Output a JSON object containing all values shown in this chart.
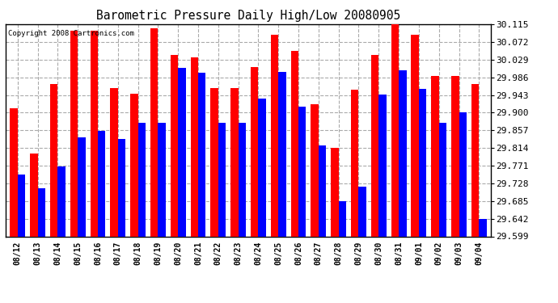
{
  "title": "Barometric Pressure Daily High/Low 20080905",
  "copyright": "Copyright 2008 Cartronics.com",
  "yticks": [
    29.599,
    29.642,
    29.685,
    29.728,
    29.771,
    29.814,
    29.857,
    29.9,
    29.943,
    29.986,
    30.029,
    30.072,
    30.115
  ],
  "ymin": 29.599,
  "ymax": 30.115,
  "background_color": "#ffffff",
  "plot_bg_color": "#ffffff",
  "grid_color": "#aaaaaa",
  "bar_high_color": "#ff0000",
  "bar_low_color": "#0000ff",
  "dates": [
    "08/12",
    "08/13",
    "08/14",
    "08/15",
    "08/16",
    "08/17",
    "08/18",
    "08/19",
    "08/20",
    "08/21",
    "08/22",
    "08/23",
    "08/24",
    "08/25",
    "08/26",
    "08/27",
    "08/28",
    "08/29",
    "08/30",
    "08/31",
    "09/01",
    "09/02",
    "09/03",
    "09/04"
  ],
  "highs": [
    29.91,
    29.8,
    29.97,
    30.1,
    30.1,
    29.96,
    29.945,
    30.105,
    30.04,
    30.035,
    29.96,
    29.96,
    30.01,
    30.09,
    30.05,
    29.92,
    29.815,
    29.955,
    30.04,
    30.115,
    30.09,
    29.99,
    29.99,
    29.97
  ],
  "lows": [
    29.75,
    29.715,
    29.77,
    29.84,
    29.855,
    29.835,
    29.875,
    29.875,
    30.008,
    29.998,
    29.875,
    29.875,
    29.935,
    30.0,
    29.915,
    29.82,
    29.685,
    29.72,
    29.943,
    30.003,
    29.958,
    29.875,
    29.9,
    29.642
  ]
}
